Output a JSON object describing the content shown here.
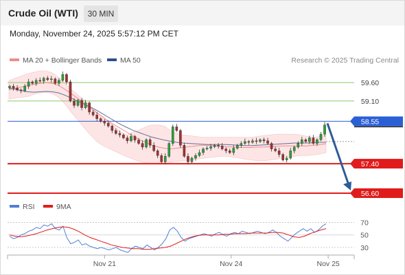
{
  "header": {
    "instrument": "Crude Oil (WTI)",
    "timeframe": "30 MIN",
    "datetime": "Monday, November 24, 2025 5:57:12 PM CET"
  },
  "legend": {
    "items": [
      {
        "label": "MA 20 + Bollinger Bands",
        "color": "#f08b8b"
      },
      {
        "label": "MA 50",
        "color": "#2e4f8a"
      }
    ],
    "credit": "Research © 2025 Trading Central"
  },
  "rsi_legend": {
    "items": [
      {
        "label": "RSI",
        "color": "#4e7fd6"
      },
      {
        "label": "9MA",
        "color": "#e01b1b"
      }
    ]
  },
  "colors": {
    "bull": "#2f9e3a",
    "bear": "#a33030",
    "resistance": "#8cc66a",
    "support": "#e01b1b",
    "pivot": "#2a5fd6",
    "arrow": "#2f5b96",
    "band": "#fde0e0"
  },
  "chart_data": [
    {
      "type": "candlestick",
      "title": "",
      "ylim": [
        56.45,
        60.05
      ],
      "levels": [
        {
          "value": 59.6,
          "label": "59.60",
          "kind": "resistance"
        },
        {
          "value": 59.1,
          "label": "59.10",
          "kind": "resistance"
        },
        {
          "value": 58.55,
          "label": "58.55",
          "kind": "pivot"
        },
        {
          "value": 57.4,
          "label": "57.40",
          "kind": "support"
        },
        {
          "value": 56.6,
          "label": "56.60",
          "kind": "support"
        }
      ],
      "price_path": [
        59.5,
        59.45,
        59.4,
        59.38,
        59.5,
        59.62,
        59.58,
        59.66,
        59.64,
        59.72,
        59.68,
        59.7,
        59.58,
        59.66,
        59.82,
        59.62,
        59.1,
        58.98,
        59.12,
        58.92,
        59.05,
        58.8,
        58.72,
        58.62,
        58.55,
        58.5,
        58.42,
        58.3,
        58.22,
        58.18,
        58.1,
        58.02,
        58.14,
        58.04,
        57.95,
        57.85,
        58.05,
        57.9,
        57.75,
        57.62,
        57.45,
        57.6,
        57.95,
        58.4,
        58.3,
        57.9,
        57.6,
        57.45,
        57.55,
        57.62,
        57.7,
        57.8,
        57.82,
        57.86,
        57.9,
        57.88,
        57.8,
        57.75,
        57.7,
        57.82,
        57.9,
        57.95,
        58.0,
        57.98,
        58.02,
        58.0,
        58.05,
        58.02,
        57.95,
        57.8,
        57.75,
        57.65,
        57.5,
        57.55,
        57.75,
        57.85,
        57.95,
        58.05,
        58.0,
        58.1,
        57.95,
        58.05,
        58.2,
        58.45
      ],
      "ma20": [
        59.4,
        59.45,
        59.48,
        59.52,
        59.55,
        59.58,
        59.6,
        59.58,
        59.52,
        59.42,
        59.3,
        59.18,
        59.05,
        58.92,
        58.8,
        58.68,
        58.55,
        58.45,
        58.35,
        58.25,
        58.15,
        58.05,
        57.98,
        57.9,
        57.85,
        57.82,
        57.8,
        57.82,
        57.84,
        57.86,
        57.88,
        57.9,
        57.9,
        57.88,
        57.87,
        57.86,
        57.85,
        57.84,
        57.84,
        57.84,
        57.85,
        57.85,
        57.86,
        57.87,
        57.88,
        57.88,
        57.88,
        57.88,
        57.88,
        57.9,
        57.92,
        57.94
      ],
      "ma50": [
        59.45,
        59.42,
        59.38,
        59.35,
        59.34,
        59.35,
        59.36,
        59.35,
        59.32,
        59.26,
        59.18,
        59.1,
        59.02,
        58.94,
        58.86,
        58.76,
        58.66,
        58.56,
        58.46,
        58.38,
        58.3,
        58.24,
        58.18,
        58.12,
        58.08,
        58.04,
        58.01,
        57.98,
        57.96,
        57.95,
        57.94,
        57.93,
        57.92,
        57.92,
        57.92,
        57.92,
        57.91,
        57.9,
        57.89,
        57.89,
        57.9,
        57.91,
        57.92,
        57.93,
        57.94,
        57.95,
        57.96,
        57.96,
        57.96,
        57.97,
        57.98,
        57.98
      ],
      "bb_upper": [
        59.65,
        59.72,
        59.78,
        59.84,
        59.88,
        59.92,
        59.92,
        59.86,
        59.74,
        59.58,
        59.42,
        59.28,
        59.14,
        58.98,
        58.82,
        58.68,
        58.54,
        58.4,
        58.26,
        58.18,
        58.26,
        58.32,
        58.4,
        58.45,
        58.45,
        58.42,
        58.3,
        58.22,
        58.18,
        58.16,
        58.14,
        58.12,
        58.12,
        58.12,
        58.12,
        58.12,
        58.12,
        58.12,
        58.12,
        58.12,
        58.14,
        58.16,
        58.18,
        58.2,
        58.2,
        58.2,
        58.2,
        58.18,
        58.14,
        58.12,
        58.14,
        58.18
      ],
      "bb_lower": [
        59.15,
        59.18,
        59.2,
        59.22,
        59.28,
        59.32,
        59.34,
        59.3,
        59.2,
        59.02,
        58.8,
        58.6,
        58.4,
        58.2,
        58.02,
        57.9,
        57.82,
        57.74,
        57.66,
        57.58,
        57.52,
        57.46,
        57.42,
        57.4,
        57.4,
        57.42,
        57.44,
        57.46,
        57.48,
        57.5,
        57.52,
        57.54,
        57.56,
        57.58,
        57.6,
        57.6,
        57.58,
        57.55,
        57.52,
        57.5,
        57.48,
        57.48,
        57.5,
        57.52,
        57.55,
        57.58,
        57.6,
        57.62,
        57.62,
        57.64,
        57.66,
        57.7
      ],
      "x_ticks": [
        {
          "label": "Nov 21",
          "pos": 0.28
        },
        {
          "label": "Nov 24",
          "pos": 0.645
        },
        {
          "label": "Nov 25",
          "pos": 0.925
        }
      ],
      "forecast": {
        "from": 58.55,
        "to": 56.6
      }
    },
    {
      "type": "line",
      "ylim": [
        20,
        75
      ],
      "y_ticks": [
        70,
        50,
        30
      ],
      "series": [
        {
          "name": "RSI",
          "values": [
            48,
            44,
            46,
            50,
            52,
            56,
            58,
            62,
            60,
            66,
            64,
            68,
            60,
            58,
            64,
            46,
            36,
            38,
            42,
            34,
            36,
            32,
            30,
            28,
            30,
            28,
            26,
            28,
            30,
            26,
            24,
            22,
            28,
            32,
            30,
            28,
            34,
            30,
            26,
            30,
            36,
            44,
            58,
            62,
            56,
            46,
            40,
            44,
            46,
            48,
            50,
            52,
            50,
            48,
            52,
            54,
            50,
            48,
            52,
            54,
            52,
            56,
            54,
            52,
            54,
            56,
            54,
            52,
            54,
            58,
            54,
            48,
            44,
            40,
            46,
            52,
            56,
            60,
            56,
            60,
            54,
            58,
            64,
            68
          ]
        },
        {
          "name": "9MA",
          "values": [
            50,
            48,
            47,
            48,
            50,
            52,
            55,
            58,
            60,
            62,
            63,
            62,
            59,
            55,
            50,
            46,
            43,
            40,
            37,
            34,
            32,
            30,
            29,
            28,
            28,
            27,
            27,
            28,
            29,
            30,
            32,
            36,
            40,
            44,
            47,
            49,
            50,
            50,
            50,
            50,
            51,
            51,
            52,
            52,
            52,
            53,
            53,
            53,
            53,
            54,
            54,
            53,
            50,
            47,
            46,
            48,
            52,
            55,
            58,
            60
          ]
        }
      ]
    }
  ]
}
